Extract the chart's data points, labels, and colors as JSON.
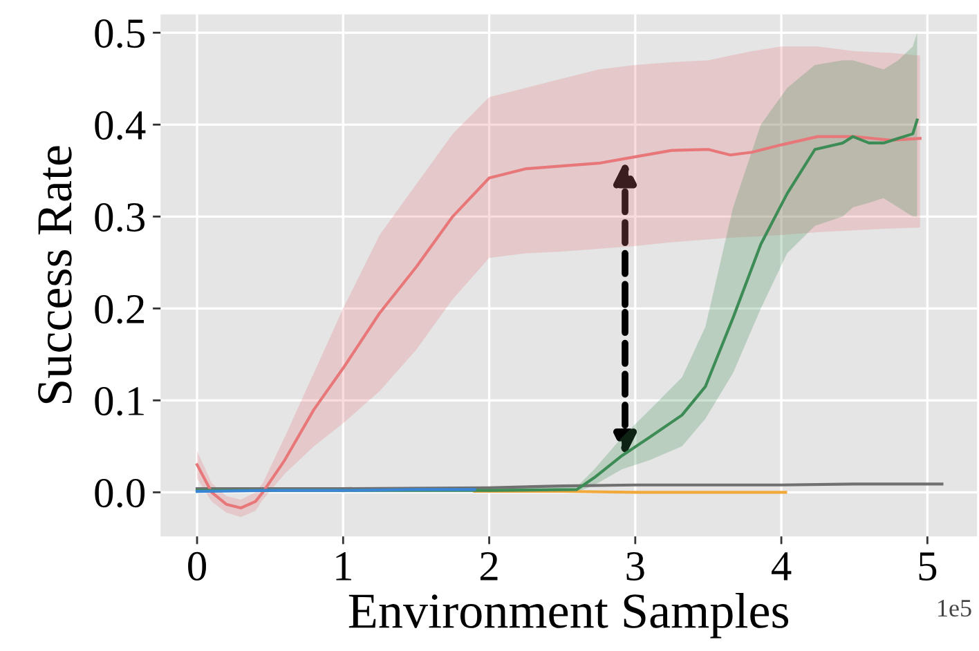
{
  "chart_data": {
    "type": "line",
    "xlabel": "Environment Samples",
    "ylabel": "Success Rate",
    "annotations": [
      "1e5"
    ],
    "xlim": [
      -0.25,
      5.34
    ],
    "ylim": [
      -0.048,
      0.52
    ],
    "xticks": [
      0,
      1,
      2,
      3,
      4,
      5
    ],
    "yticks": [
      {
        "value": 0,
        "label": "0.0"
      },
      0.1,
      0.2,
      0.3,
      0.4,
      0.5
    ],
    "grid": true,
    "marker": "none",
    "line_style": "solid",
    "series": [
      {
        "color": "#707070",
        "x": [
          0,
          1,
          2,
          2.5,
          3,
          3.5,
          4,
          4.5,
          5.1
        ],
        "values": [
          0.004,
          0.004,
          0.005,
          0.007,
          0.008,
          0.008,
          0.008,
          0.009,
          0.009
        ]
      },
      {
        "color": "#f2a93b",
        "x": [
          1.9,
          2.5,
          3,
          3.5,
          4.03
        ],
        "values": [
          0.001,
          0.001,
          0.0,
          0.0,
          0.0
        ]
      },
      {
        "color": "#e8777a",
        "x": [
          0,
          0.1,
          0.2,
          0.3,
          0.4,
          0.45,
          0.6,
          0.8,
          1.0,
          1.25,
          1.5,
          1.75,
          2.0,
          2.25,
          2.5,
          2.75,
          3.0,
          3.25,
          3.5,
          3.65,
          3.8,
          4.0,
          4.25,
          4.5,
          4.75,
          4.95
        ],
        "values": [
          0.03,
          0.0,
          -0.013,
          -0.017,
          -0.01,
          0.0,
          0.035,
          0.09,
          0.135,
          0.195,
          0.245,
          0.3,
          0.342,
          0.352,
          0.355,
          0.358,
          0.365,
          0.372,
          0.373,
          0.367,
          0.37,
          0.378,
          0.387,
          0.387,
          0.383,
          0.385
        ],
        "lower": [
          0.015,
          -0.01,
          -0.022,
          -0.027,
          -0.02,
          -0.008,
          0.02,
          0.05,
          0.075,
          0.11,
          0.155,
          0.21,
          0.255,
          0.26,
          0.262,
          0.265,
          0.268,
          0.272,
          0.275,
          0.277,
          0.278,
          0.28,
          0.283,
          0.285,
          0.287,
          0.288
        ],
        "upper": [
          0.045,
          0.01,
          -0.004,
          -0.008,
          0.0,
          0.01,
          0.06,
          0.13,
          0.2,
          0.28,
          0.335,
          0.39,
          0.43,
          0.44,
          0.45,
          0.46,
          0.465,
          0.468,
          0.47,
          0.475,
          0.48,
          0.485,
          0.485,
          0.48,
          0.478,
          0.475
        ]
      },
      {
        "color": "#3d8b55",
        "x": [
          0,
          1,
          2,
          2.6,
          2.72,
          2.91,
          3.1,
          3.32,
          3.48,
          3.67,
          3.86,
          4.04,
          4.23,
          4.42,
          4.49,
          4.6,
          4.7,
          4.8,
          4.9,
          4.93
        ],
        "values": [
          0.002,
          0.002,
          0.002,
          0.003,
          0.016,
          0.04,
          0.06,
          0.084,
          0.115,
          0.19,
          0.27,
          0.325,
          0.373,
          0.38,
          0.387,
          0.38,
          0.38,
          0.385,
          0.39,
          0.405
        ],
        "lower": [
          0.0,
          0.0,
          0.0,
          0.0,
          0.008,
          0.025,
          0.035,
          0.05,
          0.08,
          0.13,
          0.2,
          0.26,
          0.29,
          0.3,
          0.31,
          0.315,
          0.32,
          0.31,
          0.3,
          0.3
        ],
        "upper": [
          0.004,
          0.004,
          0.004,
          0.006,
          0.025,
          0.06,
          0.09,
          0.125,
          0.18,
          0.31,
          0.4,
          0.44,
          0.465,
          0.47,
          0.47,
          0.465,
          0.46,
          0.47,
          0.485,
          0.5
        ]
      },
      {
        "color": "#3a86d4",
        "x": [
          0,
          0.5,
          1,
          1.5,
          1.9
        ],
        "values": [
          0.001,
          0.002,
          0.002,
          0.003,
          0.003
        ]
      }
    ]
  }
}
